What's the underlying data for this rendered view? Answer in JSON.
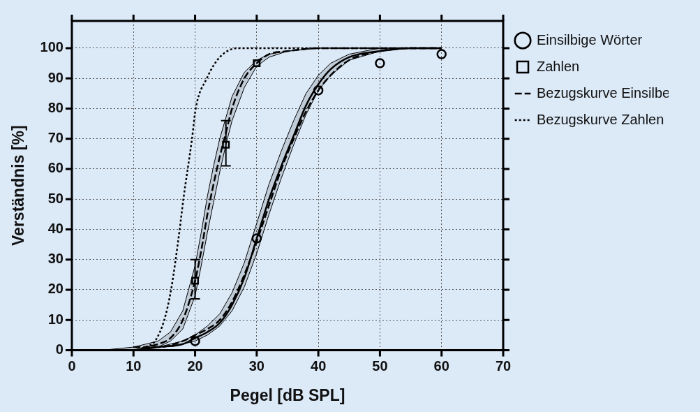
{
  "chart_data": {
    "type": "line",
    "xlabel": "Pegel [dB SPL]",
    "ylabel": "Verständnis [%]",
    "xlim": [
      0,
      70
    ],
    "xticks": [
      0,
      10,
      20,
      30,
      40,
      50,
      60,
      70
    ],
    "ylim": [
      0,
      109
    ],
    "yticks": [
      0,
      10,
      20,
      30,
      40,
      50,
      60,
      70,
      80,
      90,
      100
    ],
    "grid": true,
    "legend": "right",
    "series": [
      {
        "name": "Einsilbige Wörter",
        "type": "scatter",
        "marker": "circle",
        "color": "#000000",
        "x": [
          20,
          30,
          40,
          50,
          60
        ],
        "values": [
          3,
          37,
          86,
          95,
          98
        ]
      },
      {
        "line_style": "solid",
        "color": "#000000",
        "x": [
          0,
          5,
          10,
          14,
          18,
          20,
          22,
          24,
          26,
          28,
          30,
          32,
          34,
          36,
          38,
          40,
          42,
          45,
          50,
          55,
          60
        ],
        "values": [
          0,
          0,
          0,
          1,
          2,
          4,
          6,
          9,
          15,
          24,
          37,
          50,
          61,
          71,
          81,
          88,
          93,
          97,
          99,
          100,
          100
        ],
        "lower": [
          0,
          0,
          0,
          1,
          2,
          3,
          5,
          8,
          13,
          21,
          32,
          45,
          57,
          68,
          78,
          86,
          91,
          96,
          99,
          100,
          100
        ],
        "upper": [
          0,
          0,
          0,
          1,
          3,
          5,
          8,
          12,
          19,
          29,
          42,
          55,
          66,
          76,
          85,
          91,
          95,
          98,
          100,
          100,
          100
        ]
      },
      {
        "name": "Zahlen",
        "type": "scatter",
        "marker": "square",
        "color": "#000000",
        "x": [
          20,
          25,
          30
        ],
        "values": [
          23,
          68,
          95
        ],
        "errors": [
          [
            17,
            30
          ],
          [
            61,
            76
          ],
          null
        ]
      },
      {
        "line_style": "dashed",
        "color": "#000000",
        "x": [
          5,
          10,
          12,
          14,
          16,
          18,
          20,
          21,
          22,
          23,
          24,
          25,
          26,
          28,
          30,
          32,
          35,
          40,
          50,
          60
        ],
        "values": [
          0,
          0,
          1,
          2,
          4,
          10,
          23,
          33,
          45,
          55,
          64,
          72,
          80,
          90,
          95,
          98,
          99,
          100,
          100,
          100
        ],
        "lower": [
          0,
          0,
          1,
          1,
          3,
          7,
          18,
          28,
          39,
          49,
          59,
          68,
          76,
          87,
          94,
          97,
          99,
          100,
          100,
          100
        ],
        "upper": [
          0,
          1,
          2,
          3,
          6,
          13,
          28,
          39,
          51,
          61,
          70,
          77,
          84,
          92,
          96,
          98,
          99,
          100,
          100,
          100
        ]
      },
      {
        "name": "Bezugskurve Einsilbe",
        "line_style": "dashed",
        "color": "#000000",
        "x": [
          10,
          14,
          18,
          20,
          22,
          24,
          26,
          28,
          30,
          32,
          34,
          36,
          38,
          40,
          42,
          45,
          50,
          55,
          60
        ],
        "values": [
          1,
          1,
          3,
          5,
          7,
          10,
          16,
          25,
          36,
          48,
          60,
          70,
          79,
          86,
          91,
          96,
          99,
          100,
          100
        ]
      },
      {
        "name": "Bezugskurve Zahlen",
        "line_style": "dotted",
        "color": "#000000",
        "x": [
          12,
          13.5,
          15,
          16.1,
          17.5,
          18.1,
          19.5,
          20.1,
          21.9,
          24,
          27,
          30,
          40,
          50,
          60
        ],
        "values": [
          1,
          3,
          10,
          20,
          40,
          50,
          70,
          80,
          90,
          97,
          100,
          100,
          100,
          100,
          100
        ]
      }
    ]
  }
}
